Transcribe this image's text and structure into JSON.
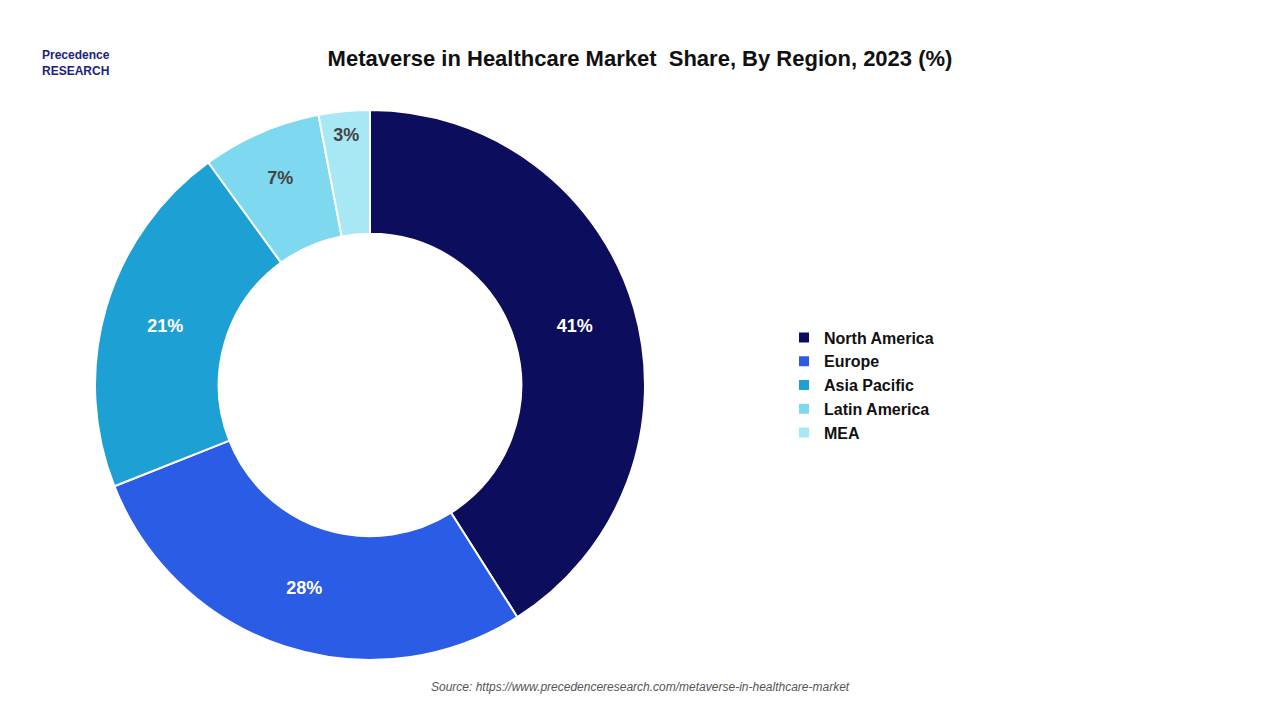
{
  "chart_data": {
    "type": "donut",
    "title": "Metaverse in Healthcare Market  Share, By Region, 2023 (%)",
    "categories": [
      "North America",
      "Europe",
      "Asia Pacific",
      "Latin America",
      "MEA"
    ],
    "values": [
      41,
      28,
      21,
      7,
      3
    ],
    "value_labels": [
      "41%",
      "28%",
      "21%",
      "7%",
      "3%"
    ],
    "colors": [
      "#0d0d5e",
      "#2b5ce6",
      "#1da0d4",
      "#7dd8f0",
      "#a8e8f5"
    ],
    "data_labels": true,
    "legend": "right",
    "annotations": [
      "Precedence\nRESEARCH",
      "Source: https://www.precedenceresearch.com/metaverse-in-healthcare-market"
    ]
  }
}
